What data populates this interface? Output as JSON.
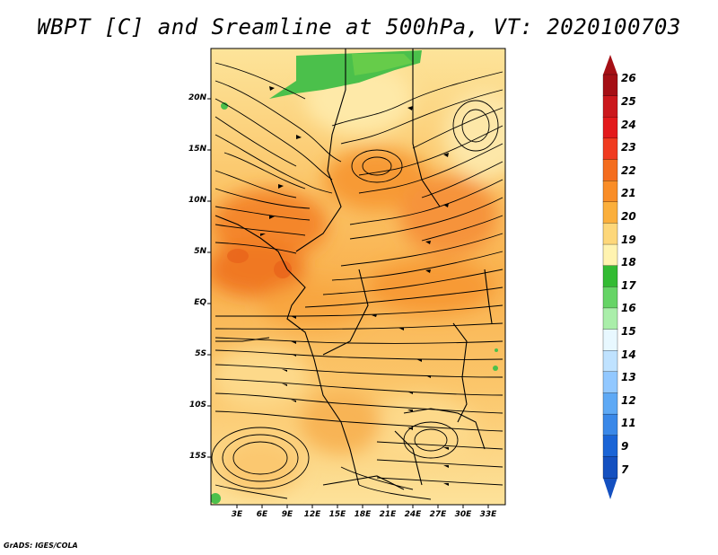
{
  "title": "WBPT [C] and Sreamline at 500hPa, VT: 2020100703",
  "lat_labels": [
    "20N",
    "15N",
    "10N",
    "5N",
    "EQ",
    "5S",
    "10S",
    "15S"
  ],
  "lon_labels": [
    "3E",
    "6E",
    "9E",
    "12E",
    "15E",
    "18E",
    "21E",
    "24E",
    "27E",
    "30E",
    "33E"
  ],
  "colorbar": {
    "labels": [
      "26",
      "25",
      "24",
      "23",
      "22",
      "21",
      "20",
      "19",
      "18",
      "17",
      "16",
      "15",
      "14",
      "13",
      "12",
      "11",
      "9",
      "7"
    ],
    "colors": [
      "#a50f15",
      "#cb181d",
      "#e31a1c",
      "#f03b20",
      "#f46d1e",
      "#f98d27",
      "#fbaf3c",
      "#fdd77a",
      "#fff3b0",
      "#33bb33",
      "#66d466",
      "#aaeeaa",
      "#e8f8ff",
      "#bfe2ff",
      "#92c8ff",
      "#5ea9f5",
      "#3a88e8",
      "#1a64d6",
      "#1450c0"
    ]
  },
  "credit": "GrADS: IGES/COLA"
}
